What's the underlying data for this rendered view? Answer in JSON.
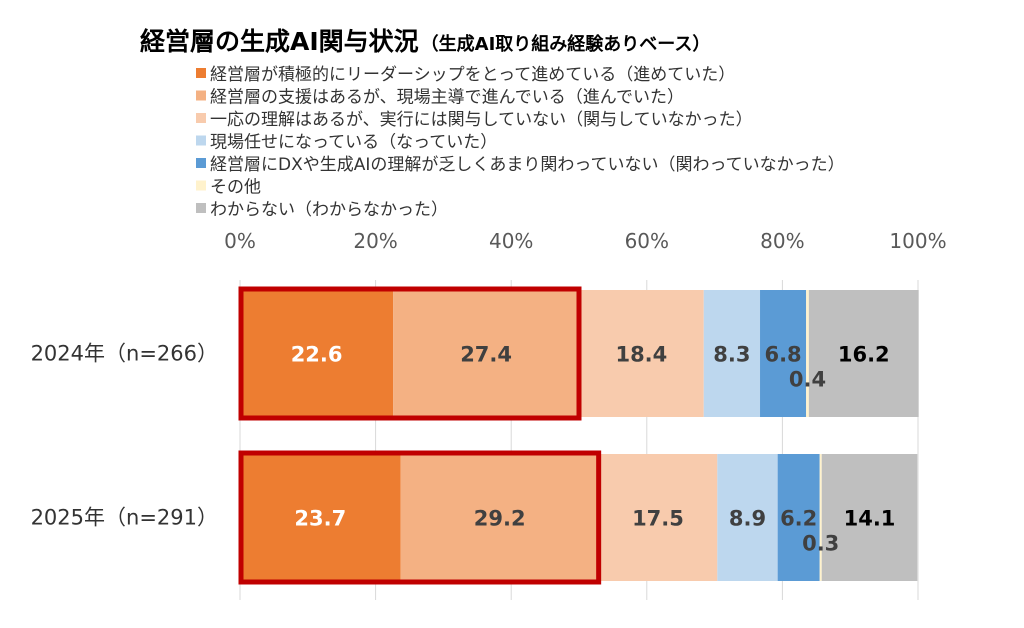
{
  "chart_data": {
    "type": "bar",
    "stacked": "percent",
    "orientation": "horizontal",
    "title": "経営層の生成AI関与状況",
    "subtitle": "（生成AI取り組み経験ありベース）",
    "categories": [
      "2024年（n=266）",
      "2025年（n=291）"
    ],
    "series": [
      {
        "name": "経営層が積極的にリーダーシップをとって進めている（進めていた）",
        "color": "#ED7D31",
        "values": [
          22.6,
          23.7
        ]
      },
      {
        "name": "経営層の支援はあるが、現場主導で進んでいる（進んでいた）",
        "color": "#F4B183",
        "values": [
          27.4,
          29.2
        ]
      },
      {
        "name": "一応の理解はあるが、実行には関与していない（関与していなかった）",
        "color": "#F8CBAD",
        "values": [
          18.4,
          17.5
        ]
      },
      {
        "name": "現場任せになっている（なっていた）",
        "color": "#BDD7EE",
        "values": [
          8.3,
          8.9
        ]
      },
      {
        "name": "経営層にDXや生成AIの理解が乏しくあまり関わっていない（関わっていなかった）",
        "color": "#5B9BD5",
        "values": [
          6.8,
          6.2
        ]
      },
      {
        "name": "その他",
        "color": "#FFF2CC",
        "values": [
          0.4,
          0.3
        ]
      },
      {
        "name": "わからない（わからなかった）",
        "color": "#BFBFBF",
        "values": [
          16.2,
          14.1
        ]
      }
    ],
    "x_ticks": [
      "0%",
      "20%",
      "40%",
      "60%",
      "80%",
      "100%"
    ],
    "xlim": [
      0,
      100
    ],
    "legend_position": "top",
    "highlight": {
      "series_indices": [
        0,
        1
      ],
      "color": "#C00000"
    }
  }
}
